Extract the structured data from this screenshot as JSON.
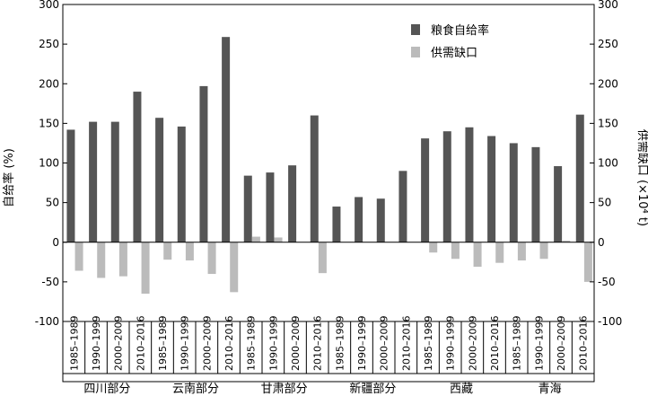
{
  "chart_data": {
    "type": "bar",
    "categories": [
      "1985–1989",
      "1990–1999",
      "2000–2009",
      "2010–2016",
      "1985–1989",
      "1990–1999",
      "2000–2009",
      "2010–2016",
      "1985–1989",
      "1990–1999",
      "2000–2009",
      "2010–2016",
      "1985–1989",
      "1990–1999",
      "2000–2009",
      "2010–2016",
      "1985–1989",
      "1990–1999",
      "2000–2009",
      "2010–2016",
      "1985–1989",
      "1990–1999",
      "2000–2009",
      "2010–2016"
    ],
    "groups": [
      {
        "name": "四川部分",
        "start": 0,
        "end": 3
      },
      {
        "name": "云南部分",
        "start": 4,
        "end": 7
      },
      {
        "name": "甘肃部分",
        "start": 8,
        "end": 11
      },
      {
        "name": "新疆部分",
        "start": 12,
        "end": 15
      },
      {
        "name": "西藏",
        "start": 16,
        "end": 19
      },
      {
        "name": "青海",
        "start": 20,
        "end": 23
      }
    ],
    "series": [
      {
        "name": "粮食自给率",
        "axis": "left",
        "color": "#555555",
        "values": [
          142,
          152,
          152,
          190,
          157,
          146,
          197,
          259,
          84,
          88,
          97,
          160,
          45,
          57,
          55,
          90,
          131,
          140,
          145,
          134,
          125,
          120,
          96,
          161
        ]
      },
      {
        "name": "供需缺口",
        "axis": "right",
        "color": "#bbbbbb",
        "values": [
          -36,
          -45,
          -43,
          -65,
          -22,
          -23,
          -40,
          -63,
          7,
          6,
          0,
          -39,
          0,
          0,
          0,
          0,
          -13,
          -21,
          -31,
          -26,
          -23,
          -21,
          2,
          -50
        ]
      }
    ],
    "ylabel": "自给率 (%)",
    "y2label": "供需缺口 (×10⁴ t)",
    "ylim": [
      -100,
      300
    ],
    "y2lim": [
      -100,
      300
    ],
    "yticks": [
      -100,
      -50,
      0,
      50,
      100,
      150,
      200,
      250,
      300
    ],
    "legend_position": "top-right",
    "grid": false
  }
}
